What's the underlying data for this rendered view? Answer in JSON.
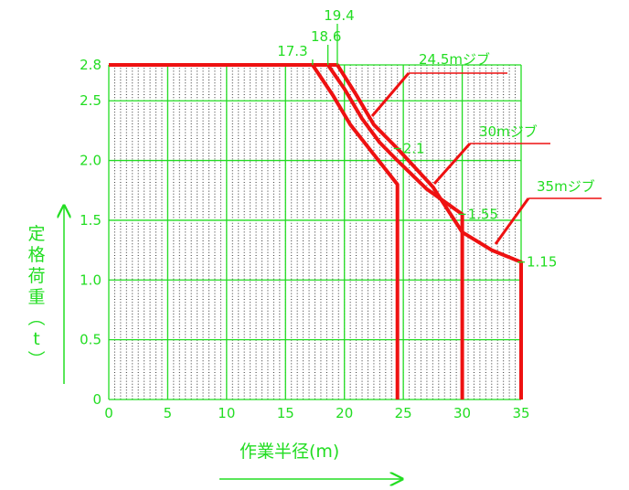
{
  "chart_data": {
    "type": "line",
    "xlabel": "作業半径(m)",
    "ylabel": "定格荷重(t)",
    "xlim": [
      0,
      35
    ],
    "ylim": [
      0,
      2.8
    ],
    "x_ticks": [
      "0",
      "5",
      "10",
      "15",
      "20",
      "25",
      "30",
      "35"
    ],
    "y_ticks": [
      "0",
      "0.5",
      "1.0",
      "1.5",
      "2.0",
      "2.5",
      "2.8"
    ],
    "grid": true,
    "series": [
      {
        "name": "24.5mジブ",
        "color": "#ee1111",
        "points": [
          [
            0,
            2.8
          ],
          [
            17.3,
            2.8
          ],
          [
            19.0,
            2.55
          ],
          [
            20.5,
            2.3
          ],
          [
            22.5,
            2.05
          ],
          [
            24.5,
            1.8
          ],
          [
            24.5,
            0
          ]
        ]
      },
      {
        "name": "30mジブ",
        "color": "#ee1111",
        "points": [
          [
            0,
            2.8
          ],
          [
            18.6,
            2.8
          ],
          [
            20.0,
            2.6
          ],
          [
            21.5,
            2.35
          ],
          [
            23.0,
            2.15
          ],
          [
            24.5,
            2.0
          ],
          [
            27.0,
            1.76
          ],
          [
            30.0,
            1.55
          ],
          [
            30.0,
            0
          ]
        ]
      },
      {
        "name": "35mジブ",
        "color": "#ee1111",
        "points": [
          [
            0,
            2.8
          ],
          [
            19.4,
            2.8
          ],
          [
            21.0,
            2.55
          ],
          [
            22.5,
            2.3
          ],
          [
            24.5,
            2.1
          ],
          [
            27.5,
            1.78
          ],
          [
            30.0,
            1.4
          ],
          [
            32.5,
            1.25
          ],
          [
            35.0,
            1.15
          ],
          [
            35.0,
            0
          ]
        ]
      }
    ],
    "annotations": [
      {
        "text": "17.3",
        "x": 17.3,
        "y": 2.8
      },
      {
        "text": "18.6",
        "x": 18.6,
        "y": 2.8
      },
      {
        "text": "19.4",
        "x": 19.4,
        "y": 2.8
      },
      {
        "text": "2.1",
        "x": 24.5,
        "y": 2.1
      },
      {
        "text": "1.55",
        "x": 30.0,
        "y": 1.55
      },
      {
        "text": "1.15",
        "x": 35.0,
        "y": 1.15
      }
    ]
  }
}
